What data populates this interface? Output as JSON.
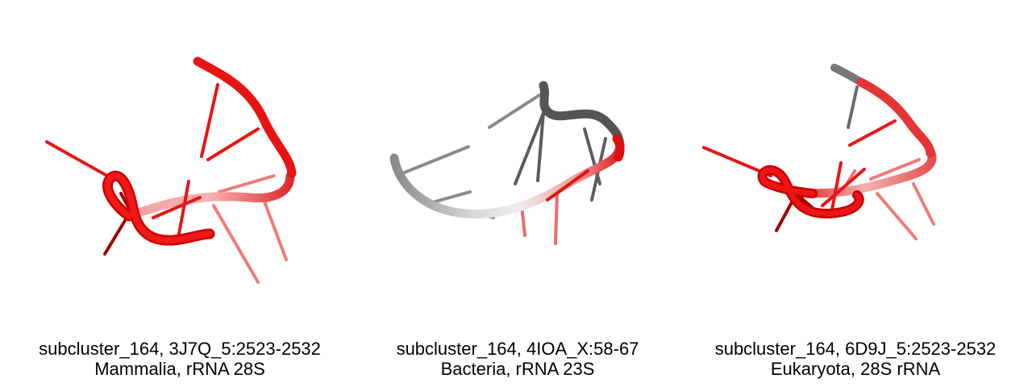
{
  "panels": [
    {
      "line1": "subcluster_164, 3J7Q_5:2523-2532",
      "line2": "Mammalia, rRNA 28S"
    },
    {
      "line1": "subcluster_164, 4IOA_X:58-67",
      "line2": "Bacteria, rRNA 23S"
    },
    {
      "line1": "subcluster_164, 6D9J_5:2523-2532",
      "line2": "Eukaryota, 28S rRNA"
    }
  ],
  "colors": {
    "red": "#ee1111",
    "pale_red": "#f08888",
    "dark_red": "#990000",
    "gray": "#666666",
    "light_gray": "#cccccc"
  }
}
